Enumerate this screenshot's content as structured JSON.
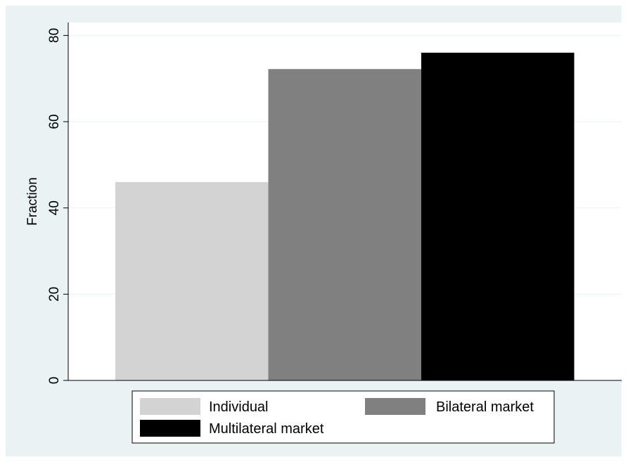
{
  "chart_data": {
    "type": "bar",
    "title": "",
    "xlabel": "",
    "ylabel": "Fraction",
    "ylim": [
      0,
      83
    ],
    "yticks": [
      0,
      20,
      40,
      60,
      80
    ],
    "grid": true,
    "legend_position": "bottom",
    "series": [
      {
        "name": "Individual",
        "values": [
          46
        ],
        "color": "#d3d3d3"
      },
      {
        "name": "Bilateral market",
        "values": [
          72.2
        ],
        "color": "#808080"
      },
      {
        "name": "Multilateral market",
        "values": [
          76
        ],
        "color": "#000000"
      }
    ]
  },
  "colors": {
    "outer_background": "#eaf2f3",
    "plot_background": "#ffffff",
    "gridline": "#eaf2f3",
    "axis": "#000000"
  }
}
